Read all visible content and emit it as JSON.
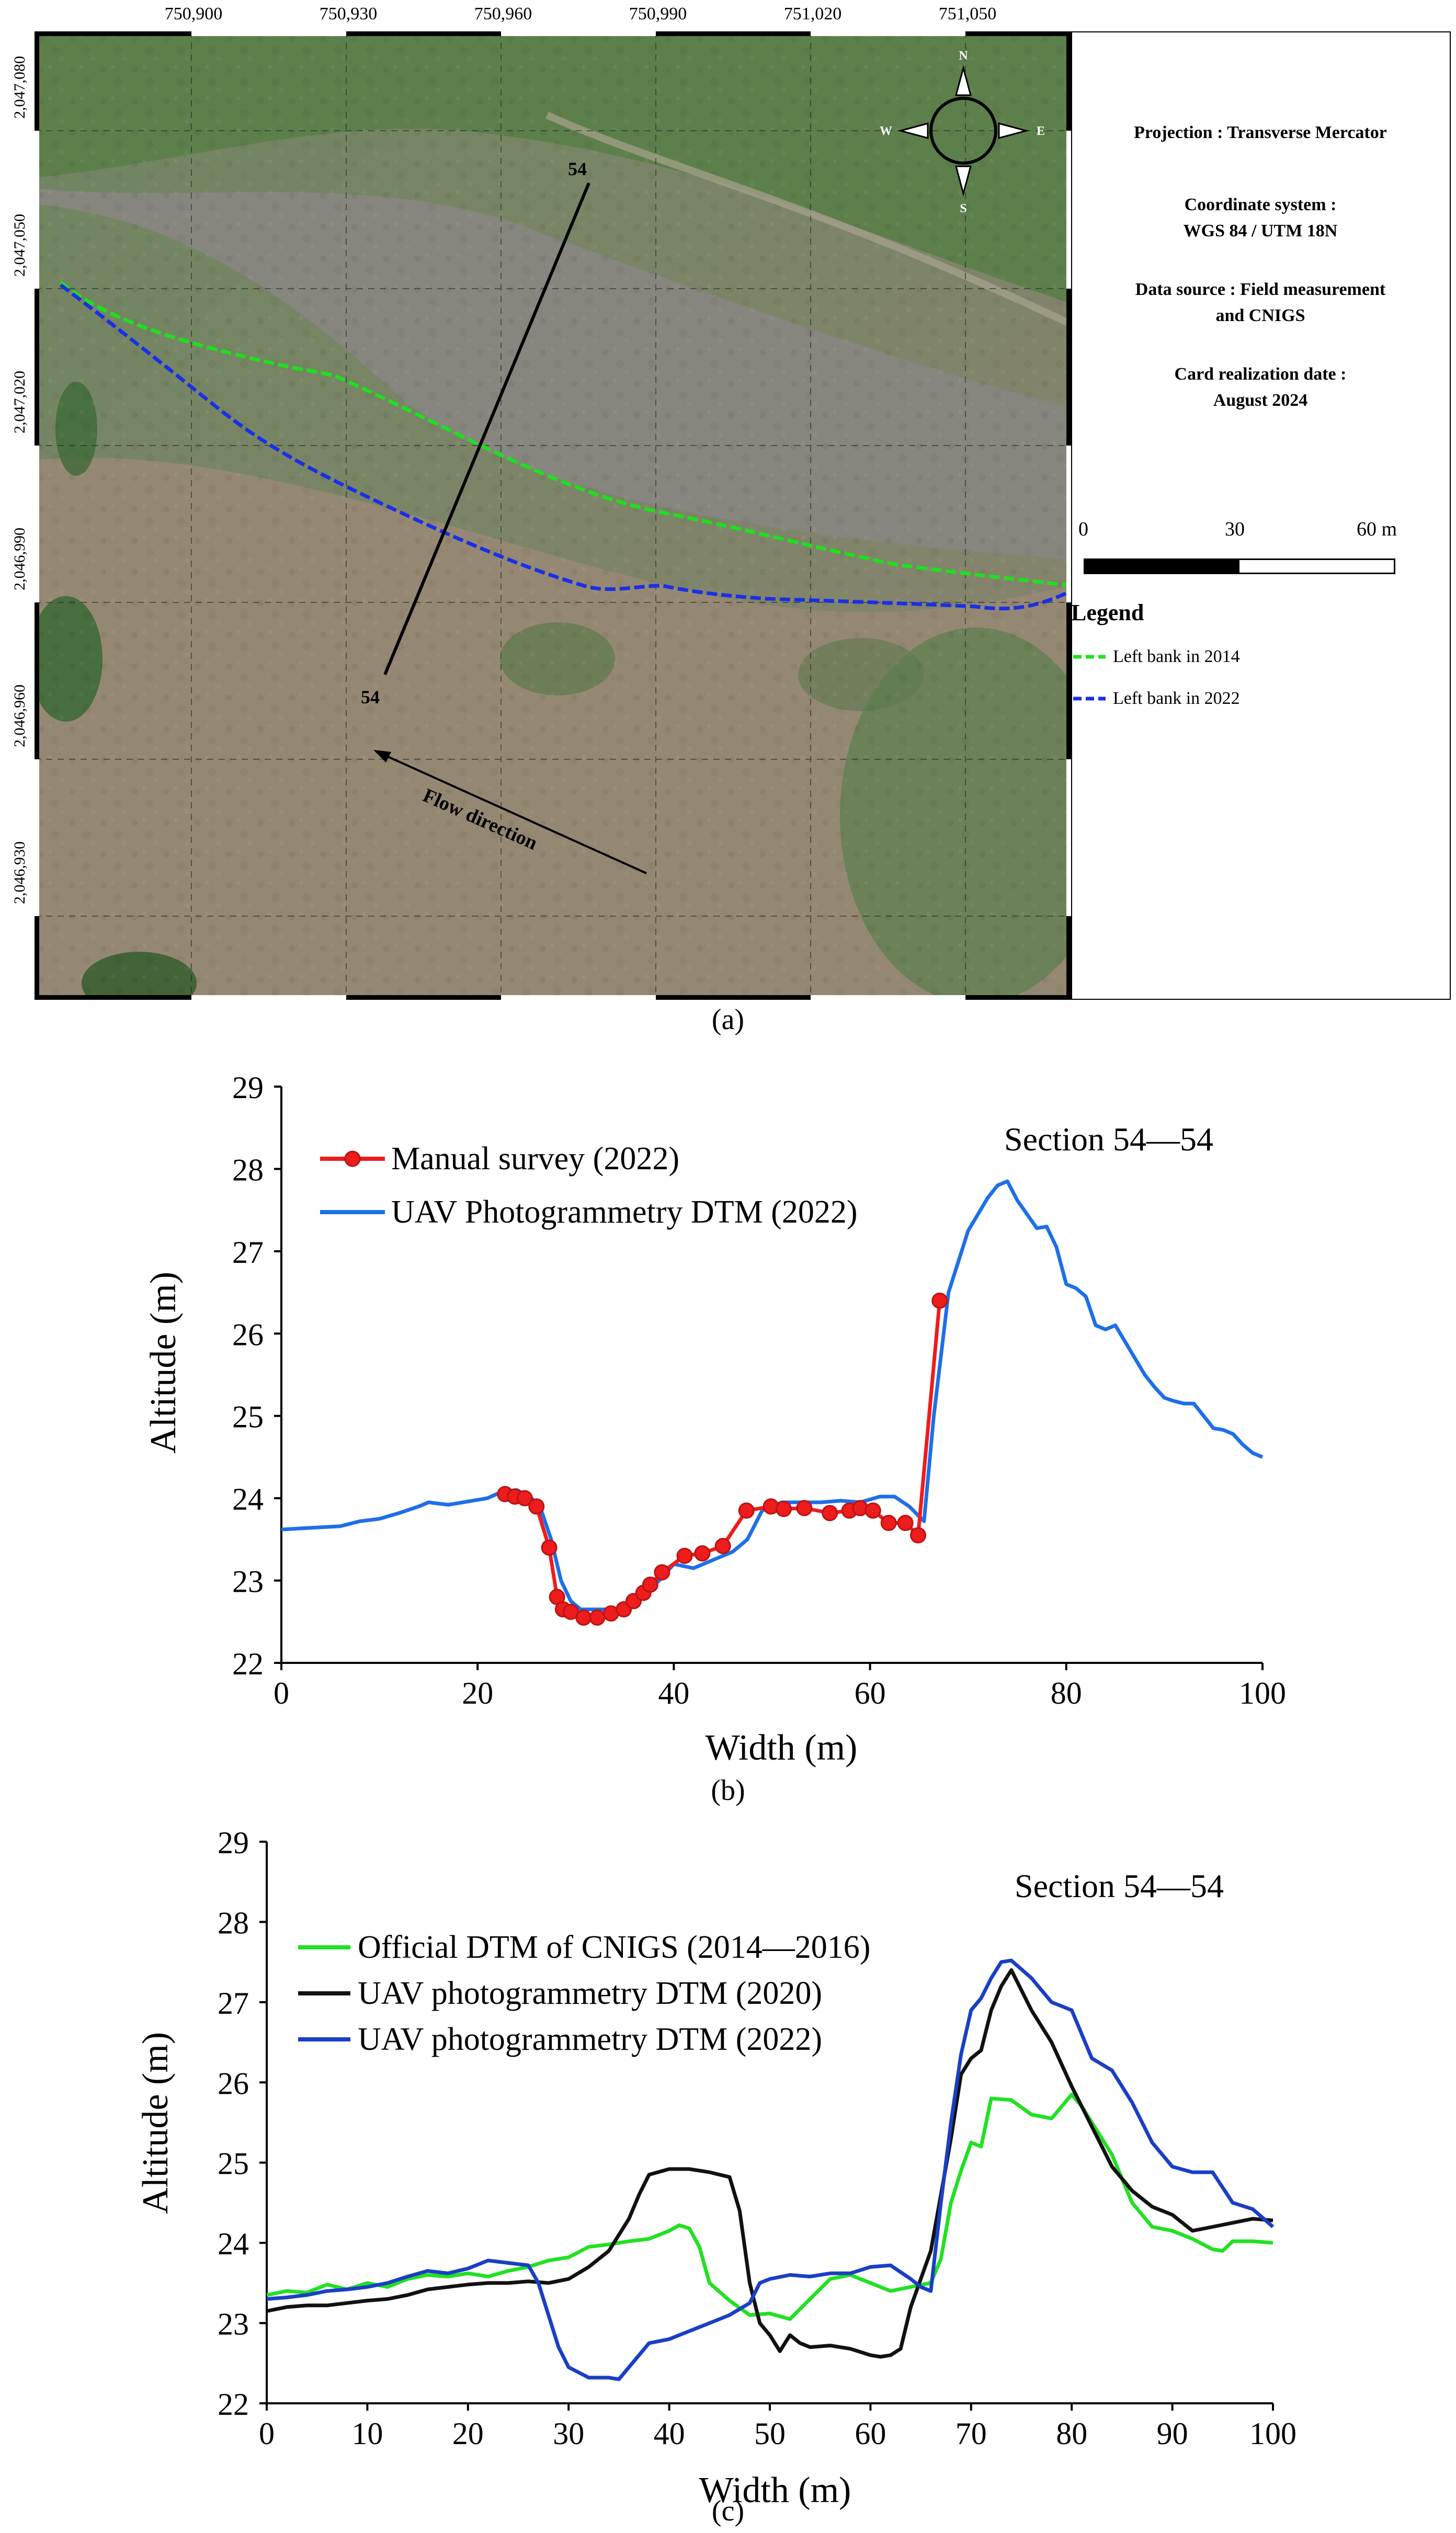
{
  "panel_a": {
    "label": "(a)",
    "map": {
      "x_ticks": [
        "750,900",
        "750,930",
        "750,960",
        "750,990",
        "751,020",
        "751,050"
      ],
      "y_ticks": [
        "2,047,080",
        "2,047,050",
        "2,047,020",
        "2,046,990",
        "2,046,960",
        "2,046,930"
      ],
      "section_label_top": "54",
      "section_label_bottom": "54",
      "flow_label": "Flow direction",
      "compass": {
        "n": "N",
        "s": "S",
        "e": "E",
        "w": "W"
      },
      "colors": {
        "bank_2014": "#1ee01e",
        "bank_2022": "#1a2fe6"
      }
    },
    "info": {
      "projection": "Projection :  Transverse Mercator",
      "coord_title": "Coordinate system :",
      "coord_value": "WGS 84 / UTM 18N",
      "source_line1": "Data source : Field measurement",
      "source_line2": "and CNIGS",
      "date_title": "Card realization date :",
      "date_value": "August 2024"
    },
    "scale": {
      "zero": "0",
      "mid": "30",
      "end": "60 m"
    },
    "legend": {
      "title": "Legend",
      "items": [
        {
          "label": "Left bank in 2014",
          "color": "#1ee01e"
        },
        {
          "label": "Left bank in 2022",
          "color": "#1a2fe6"
        }
      ]
    }
  },
  "panel_b": {
    "label": "(b)",
    "chart_data": {
      "type": "line",
      "annotation": "Section 54—54",
      "xlabel": "Width (m)",
      "ylabel": "Altitude (m)",
      "xlim": [
        0,
        100
      ],
      "ylim": [
        22,
        29
      ],
      "x_ticks": [
        0,
        20,
        40,
        60,
        80,
        100
      ],
      "y_ticks": [
        22,
        23,
        24,
        25,
        26,
        27,
        28,
        29
      ],
      "series": [
        {
          "name": "Manual survey (2022)",
          "color": "#ee1c1c",
          "marker": true,
          "x": [
            22.8,
            23.8,
            24.8,
            26.0,
            27.3,
            28.1,
            28.7,
            29.5,
            30.8,
            32.2,
            33.6,
            34.9,
            35.9,
            36.9,
            37.6,
            38.8,
            41.1,
            42.9,
            45.0,
            47.4,
            49.9,
            51.2,
            53.3,
            55.9,
            57.9,
            59.0,
            60.3,
            61.9,
            63.6,
            64.9,
            67.1
          ],
          "y": [
            24.05,
            24.02,
            24.0,
            23.9,
            23.4,
            22.8,
            22.65,
            22.62,
            22.55,
            22.55,
            22.6,
            22.65,
            22.75,
            22.85,
            22.95,
            23.1,
            23.3,
            23.33,
            23.42,
            23.85,
            23.9,
            23.87,
            23.88,
            23.82,
            23.85,
            23.88,
            23.85,
            23.7,
            23.7,
            23.55,
            26.4
          ]
        },
        {
          "name": "UAV Photogrammetry DTM (2022)",
          "color": "#1e6fe8",
          "marker": false,
          "x": [
            0,
            3,
            6,
            8,
            10,
            12,
            14,
            15,
            17,
            19,
            21,
            22.5,
            24,
            25.5,
            26.5,
            27.5,
            28.5,
            29.5,
            30.5,
            32,
            34,
            35.5,
            37,
            38.5,
            40,
            42,
            44,
            46,
            47.5,
            49,
            51,
            53,
            55,
            57,
            59,
            61,
            62.5,
            64,
            65.5,
            66.5,
            68,
            70,
            71,
            72,
            73,
            74,
            75,
            76,
            77,
            78,
            79,
            80,
            81,
            82,
            83,
            84,
            85,
            86,
            87,
            88,
            89,
            90,
            91,
            92,
            93,
            94,
            95,
            96,
            97,
            98,
            99,
            100
          ],
          "y": [
            23.62,
            23.64,
            23.66,
            23.72,
            23.75,
            23.82,
            23.9,
            23.95,
            23.92,
            23.96,
            24.0,
            24.08,
            24.1,
            24.0,
            23.85,
            23.5,
            23.0,
            22.75,
            22.65,
            22.65,
            22.65,
            22.7,
            22.85,
            23.0,
            23.2,
            23.15,
            23.25,
            23.35,
            23.5,
            23.85,
            23.95,
            23.95,
            23.95,
            23.97,
            23.95,
            24.02,
            24.02,
            23.9,
            23.72,
            25.0,
            26.5,
            27.25,
            27.45,
            27.65,
            27.8,
            27.85,
            27.62,
            27.45,
            27.28,
            27.3,
            27.05,
            26.6,
            26.55,
            26.45,
            26.1,
            26.05,
            26.1,
            25.9,
            25.7,
            25.5,
            25.35,
            25.22,
            25.18,
            25.15,
            25.15,
            25.0,
            24.85,
            24.83,
            24.78,
            24.65,
            24.55,
            24.5
          ]
        }
      ]
    }
  },
  "panel_c": {
    "label": "(c)",
    "chart_data": {
      "type": "line",
      "annotation": "Section 54—54",
      "xlabel": "Width (m)",
      "ylabel": "Altitude (m)",
      "xlim": [
        0,
        100
      ],
      "ylim": [
        22,
        29
      ],
      "x_ticks": [
        0,
        10,
        20,
        30,
        40,
        50,
        60,
        70,
        80,
        90,
        100
      ],
      "y_ticks": [
        22,
        23,
        24,
        25,
        26,
        27,
        28,
        29
      ],
      "series": [
        {
          "name": "Official DTM of CNIGS (2014—2016)",
          "color": "#22e022",
          "x": [
            0,
            2,
            4,
            6,
            8,
            10,
            12,
            14,
            16,
            18,
            20,
            22,
            24,
            26,
            28,
            30,
            32,
            34,
            36,
            38,
            40,
            41,
            42,
            43,
            44,
            46,
            48,
            50,
            52,
            54,
            56,
            58,
            60,
            62,
            64,
            66,
            67,
            68,
            69,
            70,
            71,
            72,
            74,
            76,
            78,
            80,
            81,
            82,
            84,
            86,
            88,
            90,
            92,
            94,
            95,
            96,
            98,
            100
          ],
          "y": [
            23.35,
            23.4,
            23.38,
            23.48,
            23.42,
            23.5,
            23.45,
            23.55,
            23.6,
            23.58,
            23.62,
            23.58,
            23.65,
            23.7,
            23.78,
            23.82,
            23.95,
            23.98,
            24.02,
            24.05,
            24.15,
            24.22,
            24.18,
            23.95,
            23.5,
            23.28,
            23.1,
            23.12,
            23.05,
            23.3,
            23.55,
            23.6,
            23.5,
            23.4,
            23.45,
            23.5,
            23.8,
            24.5,
            24.9,
            25.25,
            25.2,
            25.8,
            25.78,
            25.6,
            25.55,
            25.85,
            25.7,
            25.5,
            25.1,
            24.5,
            24.2,
            24.15,
            24.05,
            23.92,
            23.9,
            24.02,
            24.02,
            24.0
          ]
        },
        {
          "name": "UAV photogrammetry DTM (2020)",
          "color": "#111111",
          "x": [
            0,
            2,
            4,
            6,
            8,
            10,
            12,
            14,
            16,
            18,
            20,
            22,
            24,
            26,
            28,
            30,
            32,
            34,
            36,
            37,
            38,
            40,
            42,
            44,
            46,
            47,
            48,
            49,
            50,
            51,
            52,
            53,
            54,
            56,
            58,
            60,
            61,
            62,
            63,
            64,
            66,
            67,
            68,
            69,
            70,
            71,
            72,
            73,
            74,
            76,
            78,
            80,
            82,
            84,
            86,
            88,
            90,
            92,
            94,
            96,
            98,
            100
          ],
          "y": [
            23.15,
            23.2,
            23.22,
            23.22,
            23.25,
            23.28,
            23.3,
            23.35,
            23.42,
            23.45,
            23.48,
            23.5,
            23.5,
            23.52,
            23.5,
            23.55,
            23.7,
            23.9,
            24.3,
            24.6,
            24.85,
            24.92,
            24.92,
            24.88,
            24.82,
            24.4,
            23.5,
            23.0,
            22.85,
            22.65,
            22.85,
            22.75,
            22.7,
            22.72,
            22.68,
            22.6,
            22.58,
            22.6,
            22.68,
            23.2,
            23.9,
            24.6,
            25.3,
            26.1,
            26.3,
            26.4,
            26.9,
            27.2,
            27.4,
            26.9,
            26.5,
            25.95,
            25.45,
            24.95,
            24.65,
            24.45,
            24.35,
            24.15,
            24.2,
            24.25,
            24.3,
            24.28
          ]
        },
        {
          "name": "UAV photogrammetry DTM (2022)",
          "color": "#1a3fc6",
          "x": [
            0,
            2,
            4,
            6,
            8,
            10,
            12,
            14,
            16,
            18,
            20,
            22,
            24,
            26,
            27,
            28,
            29,
            30,
            32,
            34,
            35,
            36,
            37,
            38,
            40,
            42,
            44,
            46,
            48,
            49,
            50,
            52,
            54,
            56,
            58,
            60,
            62,
            64,
            65,
            66,
            67,
            68,
            69,
            70,
            71,
            72,
            73,
            74,
            76,
            78,
            80,
            82,
            84,
            86,
            88,
            90,
            92,
            94,
            96,
            98,
            100
          ],
          "y": [
            23.3,
            23.32,
            23.35,
            23.4,
            23.42,
            23.45,
            23.5,
            23.58,
            23.65,
            23.62,
            23.68,
            23.78,
            23.75,
            23.72,
            23.5,
            23.1,
            22.7,
            22.45,
            22.32,
            22.32,
            22.3,
            22.45,
            22.6,
            22.75,
            22.8,
            22.9,
            23.0,
            23.1,
            23.25,
            23.5,
            23.55,
            23.6,
            23.58,
            23.62,
            23.62,
            23.7,
            23.72,
            23.55,
            23.45,
            23.4,
            24.5,
            25.5,
            26.35,
            26.9,
            27.05,
            27.3,
            27.5,
            27.52,
            27.3,
            27.0,
            26.9,
            26.3,
            26.15,
            25.75,
            25.25,
            24.95,
            24.88,
            24.88,
            24.5,
            24.42,
            24.2
          ]
        }
      ]
    }
  }
}
